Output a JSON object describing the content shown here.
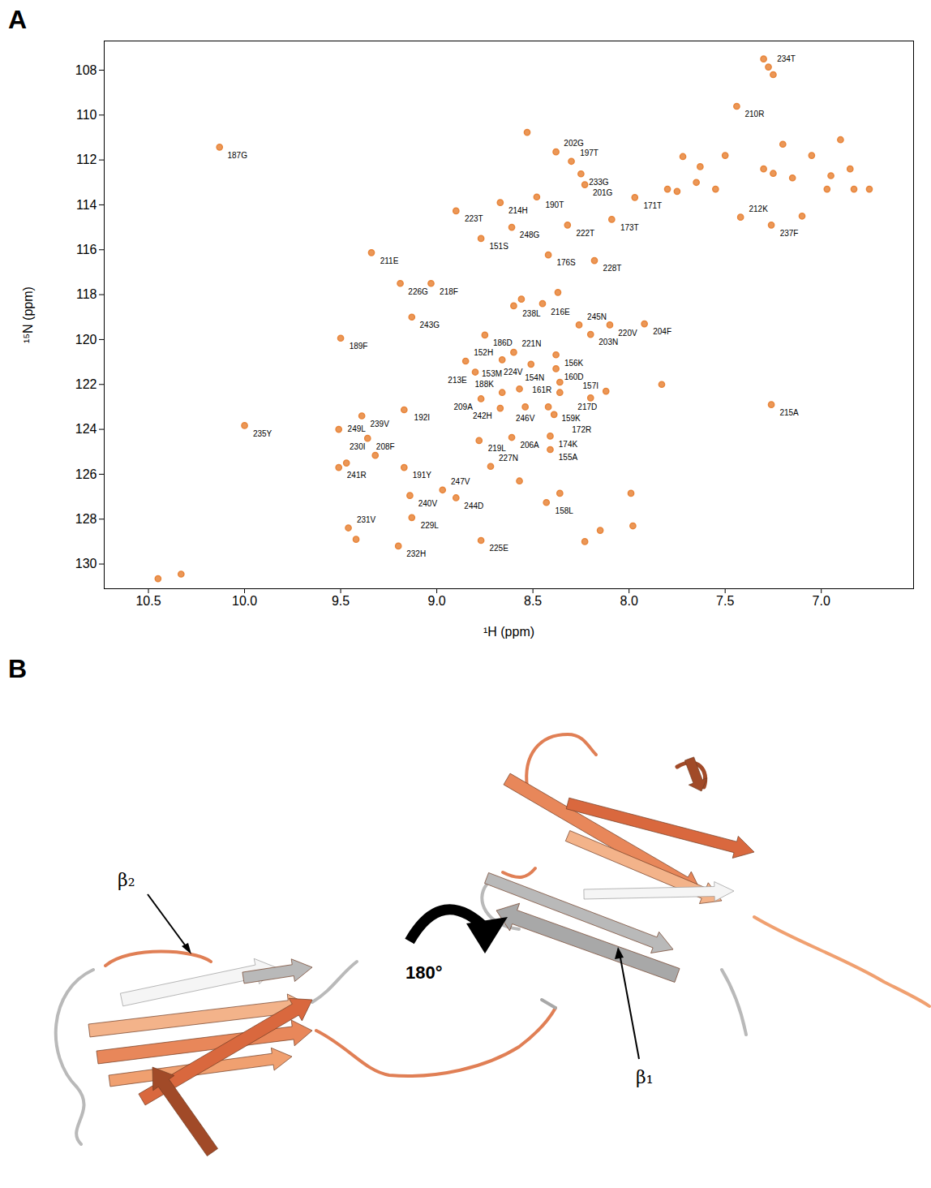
{
  "panel_labels": [
    "A",
    "B"
  ],
  "chart_data": {
    "type": "scatter",
    "x_label": "¹H (ppm)",
    "y_label": "¹⁵N (ppm)",
    "xlim": [
      10.73,
      6.52
    ],
    "ylim": [
      131.1,
      106.7
    ],
    "xticks": [
      10.5,
      {
        "value": 10,
        "label": "10.0"
      },
      9.5,
      {
        "value": 9,
        "label": "9.0"
      },
      8.5,
      {
        "value": 8,
        "label": "8.0"
      },
      7.5,
      {
        "value": 7,
        "label": "7.0"
      }
    ],
    "yticks": [
      108,
      110,
      112,
      114,
      116,
      118,
      120,
      122,
      124,
      126,
      128,
      130
    ],
    "grid": false,
    "color": "#e8853a",
    "x": [
      10.13,
      7.275,
      7.44,
      8.38,
      8.3,
      8.25,
      8.23,
      8.67,
      8.48,
      8.9,
      7.97,
      8.09,
      8.32,
      8.61,
      8.77,
      7.42,
      7.26,
      9.34,
      8.42,
      8.18,
      9.03,
      9.19,
      8.45,
      8.6,
      9.13,
      8.26,
      8.1,
      7.92,
      9.5,
      8.75,
      8.2,
      8.6,
      8.38,
      8.85,
      8.51,
      8.66,
      8.38,
      8.8,
      8.36,
      8.57,
      8.66,
      8.36,
      8.77,
      8.54,
      8.42,
      8.2,
      7.26,
      9.17,
      9.39,
      8.67,
      8.39,
      10.0,
      9.51,
      9.36,
      8.61,
      8.78,
      8.41,
      8.41,
      9.32,
      9.51,
      9.17,
      8.72,
      8.97,
      8.9,
      9.14,
      8.43,
      9.13,
      9.46,
      9.2,
      8.77,
      8.53,
      10.45,
      10.33,
      7.98,
      8.15,
      8.23,
      8.36,
      7.99,
      8.57,
      7.83,
      8.12,
      8.56,
      8.37,
      7.72,
      7.63,
      7.5,
      7.8,
      7.75,
      7.65,
      7.55,
      7.3,
      7.25,
      7.15,
      7.05,
      6.95,
      6.9,
      6.85,
      6.83,
      6.75,
      6.97,
      7.1,
      7.2,
      7.25,
      7.3,
      9.47,
      9.42
    ],
    "y": [
      111.43,
      107.86,
      109.61,
      111.64,
      112.06,
      112.62,
      113.1,
      113.9,
      113.65,
      114.27,
      113.67,
      114.65,
      114.9,
      115.0,
      115.5,
      114.55,
      114.9,
      116.13,
      116.23,
      116.48,
      117.5,
      117.5,
      118.4,
      118.5,
      119.0,
      119.35,
      119.35,
      119.3,
      119.94,
      119.8,
      119.77,
      120.57,
      120.68,
      120.96,
      121.1,
      120.9,
      121.3,
      121.45,
      121.9,
      122.2,
      122.36,
      122.36,
      122.64,
      123.0,
      123.0,
      122.6,
      122.9,
      123.13,
      123.4,
      123.06,
      123.34,
      123.83,
      124.0,
      124.4,
      124.36,
      124.5,
      124.3,
      124.9,
      125.16,
      125.7,
      125.7,
      125.65,
      126.7,
      127.05,
      126.95,
      127.26,
      127.93,
      128.39,
      129.2,
      128.95,
      110.77,
      130.65,
      130.45,
      128.3,
      128.5,
      129.0,
      126.85,
      126.85,
      126.3,
      122.0,
      122.3,
      118.2,
      117.9,
      111.85,
      112.3,
      111.8,
      113.3,
      113.4,
      113.0,
      113.3,
      112.4,
      112.6,
      112.8,
      111.8,
      112.7,
      111.1,
      112.4,
      113.3,
      113.3,
      113.3,
      114.5,
      111.3,
      108.2,
      107.5,
      125.5,
      128.9
    ],
    "point_labels": [
      "187G",
      "234T",
      "210R",
      "202G",
      "197T",
      "233G",
      "201G",
      "214H",
      "190T",
      "223T",
      "171T",
      "173T",
      "222T",
      "248G",
      "151S",
      "212K",
      "237F",
      "211E",
      "176S",
      "228T",
      "218F",
      "226G",
      "216E",
      "238L",
      "243G",
      "245N",
      "220V",
      "204F",
      "189F",
      "186D",
      "203N",
      "221N",
      "156K",
      "152H",
      "224V",
      "154N",
      "160D",
      "213E",
      "161R",
      "153M",
      "188K",
      "217D",
      "209A",
      "246V",
      "159K",
      "157I",
      "215A",
      "192I",
      "239V",
      "242H",
      "172R",
      "235Y",
      "249L",
      "208F",
      "206A",
      "219L",
      "174K",
      "155A",
      "230I",
      "241R",
      "191Y",
      "227N",
      "247V",
      "244D",
      "240V",
      "158L",
      "229L",
      "231V",
      "232H",
      "225E",
      null,
      null,
      null,
      null,
      null,
      null,
      null,
      null,
      null,
      null,
      null,
      null,
      null,
      null,
      null,
      null,
      null,
      null,
      null,
      null,
      null,
      null,
      null,
      null,
      null,
      null,
      null,
      null,
      null,
      null,
      null,
      null,
      null,
      null,
      null,
      null
    ]
  },
  "structure_panel": {
    "type": "diagram",
    "rotation_label": "180°",
    "strand_labels": [
      "β₂",
      "β₁"
    ]
  }
}
